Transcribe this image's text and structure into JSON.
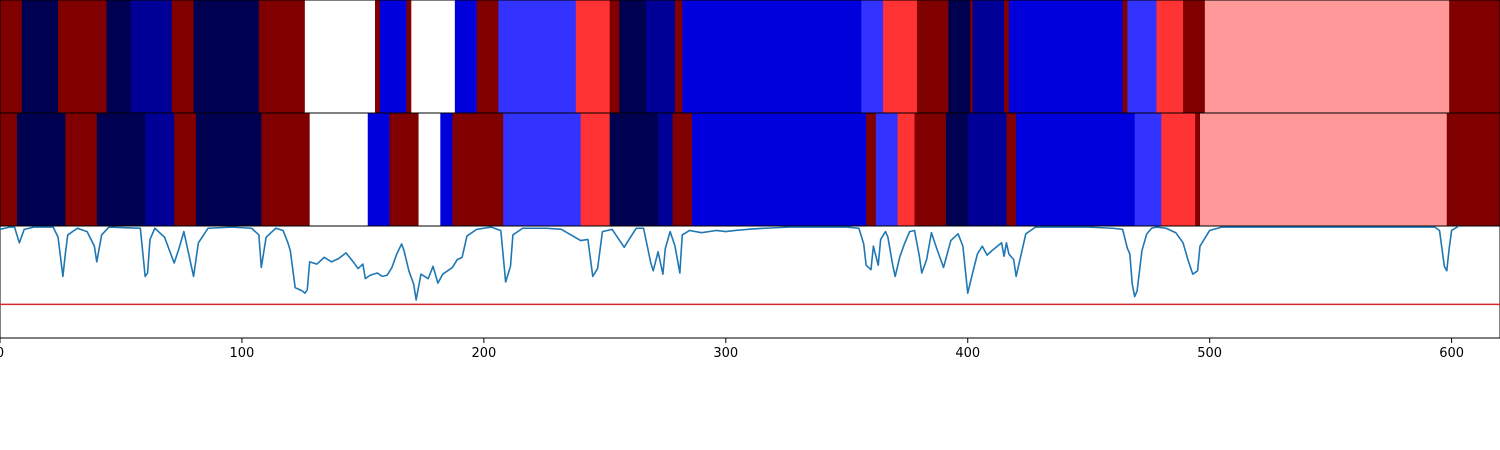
{
  "chart_data": {
    "type": "segmentation-strip",
    "x_range": [
      0,
      620
    ],
    "xticks": [
      0,
      100,
      200,
      300,
      400,
      500,
      600
    ],
    "xtick_labels": [
      "0",
      "100",
      "200",
      "300",
      "400",
      "500",
      "600"
    ],
    "palette": {
      "maroon": "#800000",
      "navy": "#000050",
      "dark_blue": "#000096",
      "blue": "#0000dc",
      "light_blue": "#3333ff",
      "red": "#ff3333",
      "pink": "#ff9999",
      "white": "#ffffff"
    },
    "rows": [
      {
        "segments": [
          {
            "start": 0,
            "end": 9,
            "color": "maroon"
          },
          {
            "start": 9,
            "end": 24,
            "color": "navy"
          },
          {
            "start": 24,
            "end": 44,
            "color": "maroon"
          },
          {
            "start": 44,
            "end": 54,
            "color": "navy"
          },
          {
            "start": 54,
            "end": 71,
            "color": "dark_blue"
          },
          {
            "start": 71,
            "end": 80,
            "color": "maroon"
          },
          {
            "start": 80,
            "end": 107,
            "color": "navy"
          },
          {
            "start": 107,
            "end": 126,
            "color": "maroon"
          },
          {
            "start": 126,
            "end": 155,
            "color": "white"
          },
          {
            "start": 155,
            "end": 157,
            "color": "maroon"
          },
          {
            "start": 157,
            "end": 168,
            "color": "blue"
          },
          {
            "start": 168,
            "end": 170,
            "color": "maroon"
          },
          {
            "start": 170,
            "end": 188,
            "color": "white"
          },
          {
            "start": 188,
            "end": 197,
            "color": "blue"
          },
          {
            "start": 197,
            "end": 206,
            "color": "maroon"
          },
          {
            "start": 206,
            "end": 238,
            "color": "light_blue"
          },
          {
            "start": 238,
            "end": 252,
            "color": "red"
          },
          {
            "start": 252,
            "end": 256,
            "color": "maroon"
          },
          {
            "start": 256,
            "end": 267,
            "color": "navy"
          },
          {
            "start": 267,
            "end": 279,
            "color": "dark_blue"
          },
          {
            "start": 279,
            "end": 282,
            "color": "maroon"
          },
          {
            "start": 282,
            "end": 356,
            "color": "blue"
          },
          {
            "start": 356,
            "end": 365,
            "color": "light_blue"
          },
          {
            "start": 365,
            "end": 379,
            "color": "red"
          },
          {
            "start": 379,
            "end": 392,
            "color": "maroon"
          },
          {
            "start": 392,
            "end": 401,
            "color": "navy"
          },
          {
            "start": 401,
            "end": 402,
            "color": "maroon"
          },
          {
            "start": 402,
            "end": 415,
            "color": "dark_blue"
          },
          {
            "start": 415,
            "end": 417,
            "color": "maroon"
          },
          {
            "start": 417,
            "end": 464,
            "color": "blue"
          },
          {
            "start": 464,
            "end": 466,
            "color": "maroon"
          },
          {
            "start": 466,
            "end": 478,
            "color": "light_blue"
          },
          {
            "start": 478,
            "end": 489,
            "color": "red"
          },
          {
            "start": 489,
            "end": 498,
            "color": "maroon"
          },
          {
            "start": 498,
            "end": 599,
            "color": "pink"
          },
          {
            "start": 599,
            "end": 620,
            "color": "maroon"
          }
        ]
      },
      {
        "segments": [
          {
            "start": 0,
            "end": 7,
            "color": "maroon"
          },
          {
            "start": 7,
            "end": 27,
            "color": "navy"
          },
          {
            "start": 27,
            "end": 40,
            "color": "maroon"
          },
          {
            "start": 40,
            "end": 60,
            "color": "navy"
          },
          {
            "start": 60,
            "end": 72,
            "color": "dark_blue"
          },
          {
            "start": 72,
            "end": 81,
            "color": "maroon"
          },
          {
            "start": 81,
            "end": 108,
            "color": "navy"
          },
          {
            "start": 108,
            "end": 128,
            "color": "maroon"
          },
          {
            "start": 128,
            "end": 152,
            "color": "white"
          },
          {
            "start": 152,
            "end": 161,
            "color": "blue"
          },
          {
            "start": 161,
            "end": 173,
            "color": "maroon"
          },
          {
            "start": 173,
            "end": 182,
            "color": "white"
          },
          {
            "start": 182,
            "end": 187,
            "color": "blue"
          },
          {
            "start": 187,
            "end": 208,
            "color": "maroon"
          },
          {
            "start": 208,
            "end": 240,
            "color": "light_blue"
          },
          {
            "start": 240,
            "end": 252,
            "color": "red"
          },
          {
            "start": 252,
            "end": 272,
            "color": "navy"
          },
          {
            "start": 272,
            "end": 278,
            "color": "dark_blue"
          },
          {
            "start": 278,
            "end": 286,
            "color": "maroon"
          },
          {
            "start": 286,
            "end": 358,
            "color": "blue"
          },
          {
            "start": 358,
            "end": 362,
            "color": "maroon"
          },
          {
            "start": 362,
            "end": 371,
            "color": "light_blue"
          },
          {
            "start": 371,
            "end": 378,
            "color": "red"
          },
          {
            "start": 378,
            "end": 391,
            "color": "maroon"
          },
          {
            "start": 391,
            "end": 400,
            "color": "navy"
          },
          {
            "start": 400,
            "end": 416,
            "color": "dark_blue"
          },
          {
            "start": 416,
            "end": 420,
            "color": "maroon"
          },
          {
            "start": 420,
            "end": 469,
            "color": "blue"
          },
          {
            "start": 469,
            "end": 480,
            "color": "light_blue"
          },
          {
            "start": 480,
            "end": 494,
            "color": "red"
          },
          {
            "start": 494,
            "end": 496,
            "color": "maroon"
          },
          {
            "start": 496,
            "end": 598,
            "color": "pink"
          },
          {
            "start": 598,
            "end": 620,
            "color": "maroon"
          }
        ]
      }
    ],
    "line_panel": {
      "y_range": [
        0,
        1
      ],
      "threshold": 0.3,
      "threshold_color": "#d62728",
      "line_color": "#1f77b4",
      "points": [
        [
          0,
          0.97
        ],
        [
          4,
          0.99
        ],
        [
          6,
          0.99
        ],
        [
          8,
          0.85
        ],
        [
          10,
          0.97
        ],
        [
          14,
          0.99
        ],
        [
          22,
          0.99
        ],
        [
          24,
          0.9
        ],
        [
          26,
          0.55
        ],
        [
          27,
          0.75
        ],
        [
          28,
          0.92
        ],
        [
          32,
          0.98
        ],
        [
          36,
          0.95
        ],
        [
          39,
          0.82
        ],
        [
          40,
          0.68
        ],
        [
          42,
          0.92
        ],
        [
          45,
          0.99
        ],
        [
          58,
          0.98
        ],
        [
          60,
          0.55
        ],
        [
          61,
          0.58
        ],
        [
          62,
          0.88
        ],
        [
          64,
          0.98
        ],
        [
          68,
          0.9
        ],
        [
          72,
          0.67
        ],
        [
          74,
          0.8
        ],
        [
          76,
          0.95
        ],
        [
          79,
          0.65
        ],
        [
          80,
          0.55
        ],
        [
          82,
          0.85
        ],
        [
          86,
          0.98
        ],
        [
          96,
          0.99
        ],
        [
          104,
          0.98
        ],
        [
          107,
          0.92
        ],
        [
          108,
          0.63
        ],
        [
          110,
          0.9
        ],
        [
          114,
          0.98
        ],
        [
          117,
          0.96
        ],
        [
          119,
          0.85
        ],
        [
          120,
          0.78
        ],
        [
          122,
          0.45
        ],
        [
          124,
          0.43
        ],
        [
          125,
          0.42
        ],
        [
          126,
          0.4
        ],
        [
          127,
          0.43
        ],
        [
          128,
          0.68
        ],
        [
          131,
          0.66
        ],
        [
          134,
          0.72
        ],
        [
          137,
          0.68
        ],
        [
          140,
          0.71
        ],
        [
          143,
          0.76
        ],
        [
          146,
          0.68
        ],
        [
          148,
          0.62
        ],
        [
          150,
          0.66
        ],
        [
          151,
          0.53
        ],
        [
          153,
          0.56
        ],
        [
          156,
          0.58
        ],
        [
          158,
          0.55
        ],
        [
          160,
          0.56
        ],
        [
          162,
          0.63
        ],
        [
          164,
          0.75
        ],
        [
          166,
          0.84
        ],
        [
          167,
          0.78
        ],
        [
          169,
          0.6
        ],
        [
          171,
          0.48
        ],
        [
          172,
          0.34
        ],
        [
          174,
          0.57
        ],
        [
          177,
          0.53
        ],
        [
          179,
          0.64
        ],
        [
          181,
          0.49
        ],
        [
          183,
          0.57
        ],
        [
          187,
          0.63
        ],
        [
          189,
          0.7
        ],
        [
          191,
          0.72
        ],
        [
          193,
          0.91
        ],
        [
          197,
          0.97
        ],
        [
          203,
          0.99
        ],
        [
          207,
          0.96
        ],
        [
          209,
          0.5
        ],
        [
          211,
          0.64
        ],
        [
          212,
          0.92
        ],
        [
          216,
          0.98
        ],
        [
          226,
          0.98
        ],
        [
          232,
          0.97
        ],
        [
          236,
          0.92
        ],
        [
          240,
          0.87
        ],
        [
          243,
          0.88
        ],
        [
          245,
          0.55
        ],
        [
          247,
          0.62
        ],
        [
          249,
          0.95
        ],
        [
          253,
          0.97
        ],
        [
          258,
          0.81
        ],
        [
          260,
          0.88
        ],
        [
          263,
          0.98
        ],
        [
          266,
          0.98
        ],
        [
          269,
          0.67
        ],
        [
          270,
          0.6
        ],
        [
          272,
          0.77
        ],
        [
          274,
          0.57
        ],
        [
          275,
          0.8
        ],
        [
          277,
          0.95
        ],
        [
          279,
          0.82
        ],
        [
          281,
          0.58
        ],
        [
          282,
          0.92
        ],
        [
          285,
          0.96
        ],
        [
          290,
          0.94
        ],
        [
          296,
          0.96
        ],
        [
          300,
          0.95
        ],
        [
          304,
          0.96
        ],
        [
          309,
          0.97
        ],
        [
          316,
          0.98
        ],
        [
          326,
          0.99
        ],
        [
          340,
          0.99
        ],
        [
          350,
          0.99
        ],
        [
          355,
          0.98
        ],
        [
          357,
          0.84
        ],
        [
          358,
          0.65
        ],
        [
          360,
          0.61
        ],
        [
          361,
          0.82
        ],
        [
          363,
          0.65
        ],
        [
          364,
          0.88
        ],
        [
          366,
          0.95
        ],
        [
          367,
          0.9
        ],
        [
          369,
          0.65
        ],
        [
          370,
          0.55
        ],
        [
          372,
          0.73
        ],
        [
          374,
          0.85
        ],
        [
          376,
          0.95
        ],
        [
          378,
          0.96
        ],
        [
          380,
          0.73
        ],
        [
          381,
          0.58
        ],
        [
          383,
          0.7
        ],
        [
          385,
          0.94
        ],
        [
          387,
          0.81
        ],
        [
          390,
          0.63
        ],
        [
          393,
          0.87
        ],
        [
          396,
          0.93
        ],
        [
          398,
          0.82
        ],
        [
          400,
          0.4
        ],
        [
          402,
          0.58
        ],
        [
          404,
          0.75
        ],
        [
          406,
          0.82
        ],
        [
          408,
          0.74
        ],
        [
          410,
          0.78
        ],
        [
          414,
          0.85
        ],
        [
          415,
          0.73
        ],
        [
          416,
          0.85
        ],
        [
          417,
          0.75
        ],
        [
          419,
          0.7
        ],
        [
          420,
          0.55
        ],
        [
          422,
          0.74
        ],
        [
          424,
          0.93
        ],
        [
          426,
          0.96
        ],
        [
          428,
          0.99
        ],
        [
          430,
          0.99
        ],
        [
          440,
          0.99
        ],
        [
          450,
          0.99
        ],
        [
          460,
          0.98
        ],
        [
          464,
          0.97
        ],
        [
          466,
          0.8
        ],
        [
          467,
          0.75
        ],
        [
          468,
          0.48
        ],
        [
          469,
          0.37
        ],
        [
          470,
          0.42
        ],
        [
          472,
          0.78
        ],
        [
          474,
          0.93
        ],
        [
          476,
          0.98
        ],
        [
          478,
          0.99
        ],
        [
          482,
          0.98
        ],
        [
          486,
          0.94
        ],
        [
          489,
          0.85
        ],
        [
          491,
          0.7
        ],
        [
          493,
          0.57
        ],
        [
          495,
          0.6
        ],
        [
          496,
          0.82
        ],
        [
          500,
          0.96
        ],
        [
          505,
          0.99
        ],
        [
          520,
          0.99
        ],
        [
          540,
          0.99
        ],
        [
          580,
          0.99
        ],
        [
          593,
          0.99
        ],
        [
          595,
          0.96
        ],
        [
          597,
          0.64
        ],
        [
          598,
          0.6
        ],
        [
          599,
          0.8
        ],
        [
          600,
          0.96
        ],
        [
          603,
          1.0
        ]
      ]
    }
  }
}
